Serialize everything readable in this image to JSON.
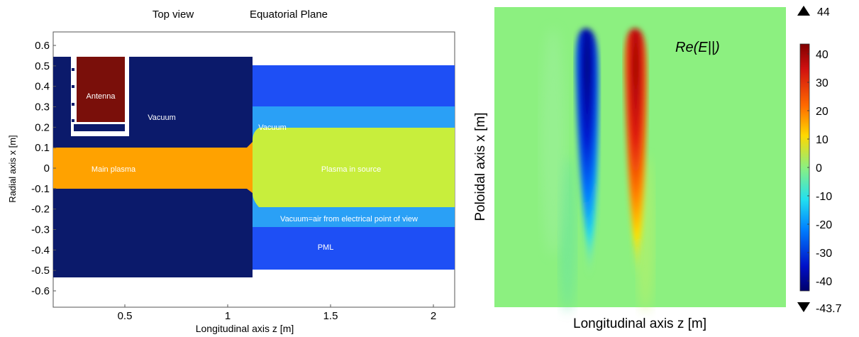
{
  "left_panel": {
    "title_top_view": "Top view",
    "title_equatorial": "Equatorial Plane",
    "xlabel": "Longitudinal axis z [m]",
    "ylabel": "Radial axis x [m]",
    "x_ticks": [
      "0.5",
      "1",
      "1.5",
      "2"
    ],
    "y_ticks": [
      "0.6",
      "0.5",
      "0.4",
      "0.3",
      "0.2",
      "0.1",
      "0",
      "-0.1",
      "-0.2",
      "-0.3",
      "-0.4",
      "-0.5",
      "-0.6"
    ],
    "regions": {
      "antenna": "Antenna",
      "vacuum": "Vacuum",
      "vacuum_source": "Vacuum",
      "main_plasma": "Main plasma",
      "plasma_source": "Plasma in source",
      "vacuum_air": "Vacuum=air from electrical point of view",
      "pml": "PML"
    },
    "colors": {
      "dark_navy": "#0b1a6b",
      "blue": "#1e4ff5",
      "light_blue": "#2aa0f6",
      "orange": "#ffa200",
      "lime": "#c8ee3c",
      "antenna": "#7a0f0a"
    }
  },
  "right_panel": {
    "field_label": "Re(E||)",
    "xlabel": "Longitudinal axis z [m]",
    "ylabel": "Poloidal axis x [m]",
    "max_label": "44",
    "min_label": "-43.7",
    "max_marker": "up-triangle-icon",
    "min_marker": "down-triangle-icon",
    "colorbar_ticks": [
      "40",
      "30",
      "20",
      "10",
      "0",
      "-10",
      "-20",
      "-30",
      "-40"
    ],
    "background_color": "#8cf080"
  }
}
